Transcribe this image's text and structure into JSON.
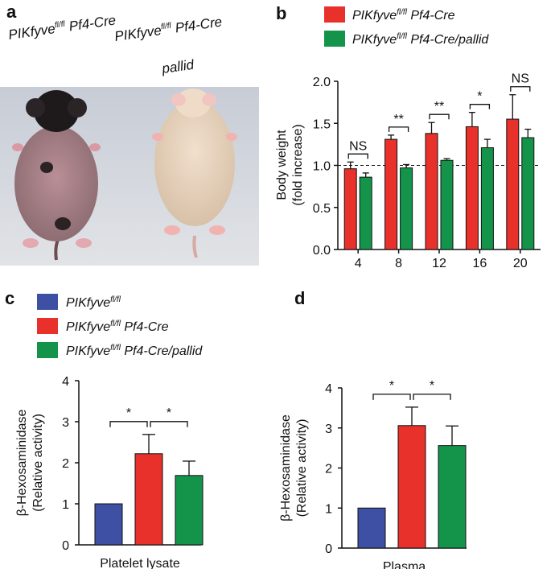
{
  "panels": {
    "a": "a",
    "b": "b",
    "c": "c",
    "d": "d"
  },
  "photo_labels": {
    "left": {
      "main": "PIKfyve",
      "sup": "fl/fl",
      "rest": " Pf4-Cre"
    },
    "right": {
      "main": "PIKfyve",
      "sup": "fl/fl",
      "rest": " Pf4-Cre",
      "line2": "pallid"
    }
  },
  "colors": {
    "blue": "#3d50a3",
    "red": "#e8312b",
    "green": "#14944a"
  },
  "legend_b": [
    {
      "main": "PIKfyve",
      "sup": "fl/fl",
      "rest": " Pf4-Cre",
      "color": "#e8312b"
    },
    {
      "main": "PIKfyve",
      "sup": "fl/fl",
      "rest": " Pf4-Cre/pallid",
      "color": "#14944a"
    }
  ],
  "legend_c": [
    {
      "main": "PIKfyve",
      "sup": "fl/fl",
      "rest": "",
      "color": "#3d50a3"
    },
    {
      "main": "PIKfyve",
      "sup": "fl/fl",
      "rest": " Pf4-Cre",
      "color": "#e8312b"
    },
    {
      "main": "PIKfyve",
      "sup": "fl/fl",
      "rest": " Pf4-Cre/pallid",
      "color": "#14944a"
    }
  ],
  "chart_data": [
    {
      "panel": "b",
      "type": "bar",
      "ylabel": [
        "Body weight",
        "(fold increase)"
      ],
      "ylim": [
        0,
        2.0
      ],
      "yticks": [
        "0.0",
        "0.5",
        "1.0",
        "1.5",
        "2.0"
      ],
      "categories": [
        "4",
        "8",
        "12",
        "16",
        "20"
      ],
      "reference_line": 1.0,
      "series": [
        {
          "name": "PIKfyve fl/fl Pf4-Cre",
          "color": "#e8312b",
          "values": [
            0.96,
            1.31,
            1.38,
            1.46,
            1.55
          ],
          "errors": [
            0.08,
            0.05,
            0.13,
            0.17,
            0.29
          ]
        },
        {
          "name": "PIKfyve fl/fl Pf4-Cre/pallid",
          "color": "#14944a",
          "values": [
            0.86,
            0.97,
            1.06,
            1.21,
            1.33
          ],
          "errors": [
            0.05,
            0.04,
            0.02,
            0.1,
            0.1
          ]
        }
      ],
      "significance": [
        "NS",
        "**",
        "**",
        "*",
        "NS"
      ]
    },
    {
      "panel": "c",
      "type": "bar",
      "xlabel": "Platelet lysate",
      "ylabel": [
        "β-Hexosaminidase",
        "(Relative activity)"
      ],
      "ylim": [
        0,
        4
      ],
      "yticks": [
        "0",
        "1",
        "2",
        "3",
        "4"
      ],
      "bars": [
        {
          "value": 1.0,
          "error": 0,
          "color": "#3d50a3"
        },
        {
          "value": 2.22,
          "error": 0.47,
          "color": "#e8312b"
        },
        {
          "value": 1.69,
          "error": 0.35,
          "color": "#14944a"
        }
      ],
      "significance": [
        "*",
        "*"
      ]
    },
    {
      "panel": "d",
      "type": "bar",
      "xlabel": "Plasma",
      "ylabel": [
        "β-Hexosaminidase",
        "(Relative activity)"
      ],
      "ylim": [
        0,
        4
      ],
      "yticks": [
        "0",
        "1",
        "2",
        "3",
        "4"
      ],
      "bars": [
        {
          "value": 1.0,
          "error": 0,
          "color": "#3d50a3"
        },
        {
          "value": 3.06,
          "error": 0.46,
          "color": "#e8312b"
        },
        {
          "value": 2.56,
          "error": 0.49,
          "color": "#14944a"
        }
      ],
      "significance": [
        "*",
        "*"
      ]
    }
  ]
}
